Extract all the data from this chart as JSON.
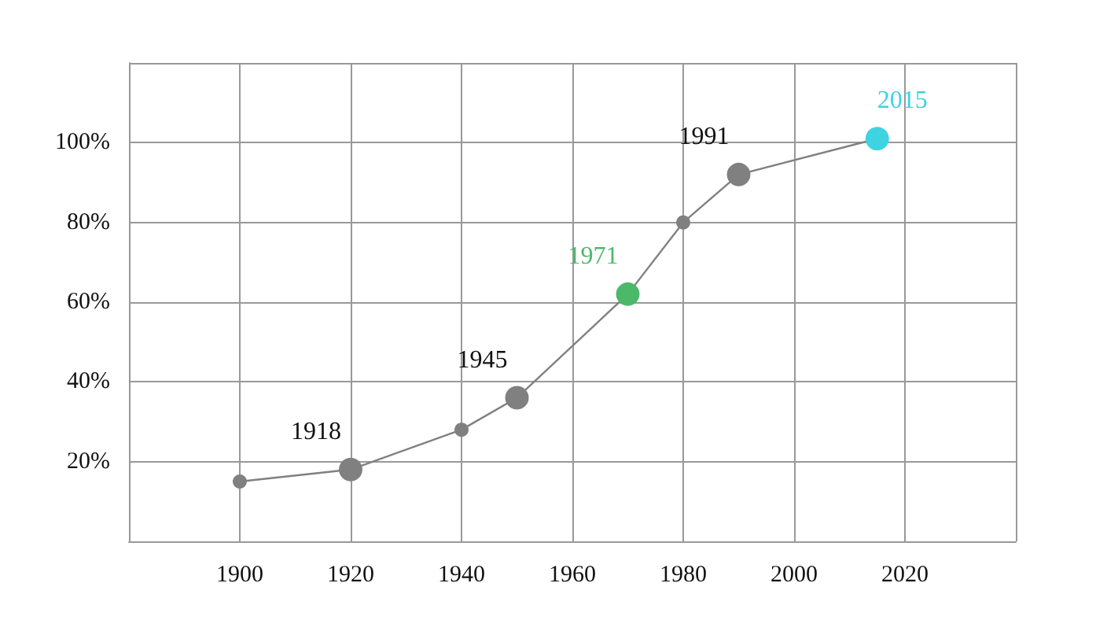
{
  "chart_data": {
    "type": "line",
    "x": [
      1900,
      1920,
      1940,
      1950,
      1970,
      1980,
      1990,
      2015
    ],
    "values": [
      15,
      18,
      28,
      36,
      62,
      80,
      92,
      101
    ],
    "colors": [
      "#808080",
      "#808080",
      "#808080",
      "#808080",
      "#4cb86a",
      "#808080",
      "#808080",
      "#3dd3e0"
    ],
    "xlim": [
      1880,
      2040
    ],
    "xticks": [
      {
        "value": 1880,
        "label": null
      },
      1900,
      1920,
      1940,
      1960,
      1980,
      2000,
      2020,
      {
        "value": 2040,
        "label": null
      }
    ],
    "ylim": [
      0,
      120
    ],
    "yticks": [
      {
        "value": 0,
        "label": null
      },
      {
        "value": 20,
        "label": "20%"
      },
      {
        "value": 40,
        "label": "40%"
      },
      {
        "value": 60,
        "label": "60%"
      },
      {
        "value": 80,
        "label": "80%"
      },
      {
        "value": 100,
        "label": "100%"
      },
      {
        "value": 120,
        "label": null
      }
    ],
    "annotations": [
      {
        "text": "1918",
        "x": 1920,
        "y": 18
      },
      {
        "text": "1945",
        "x": 1950,
        "y": 36
      },
      {
        "text": "1971",
        "x": 1970,
        "y": 62
      },
      {
        "text": "1991",
        "x": 1990,
        "y": 92
      },
      {
        "text": "2015",
        "x": 2015,
        "y": 101
      }
    ],
    "grid": true,
    "marker": "circle",
    "line_style": "solid"
  }
}
